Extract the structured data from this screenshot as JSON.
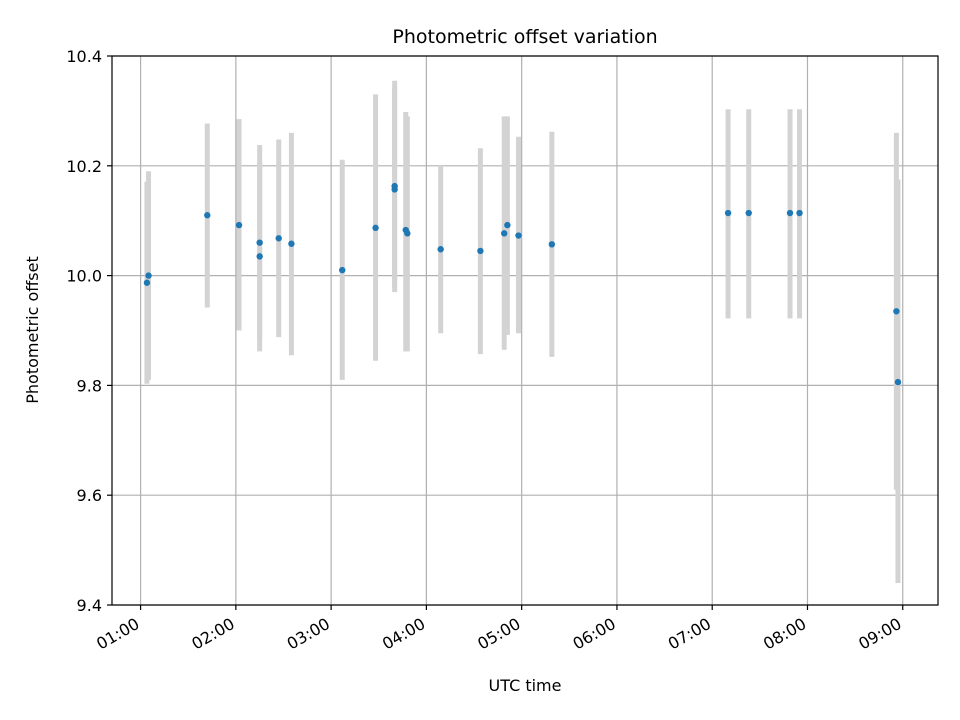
{
  "chart_data": {
    "type": "scatter",
    "title": "Photometric offset variation",
    "xlabel": "UTC time",
    "ylabel": "Photometric offset",
    "x_ticks": [
      "01:00",
      "02:00",
      "03:00",
      "04:00",
      "05:00",
      "06:00",
      "07:00",
      "08:00",
      "09:00"
    ],
    "x_tick_hours": [
      1,
      2,
      3,
      4,
      5,
      6,
      7,
      8,
      9
    ],
    "xlim_hours": [
      0.7,
      9.37
    ],
    "y_ticks": [
      "9.4",
      "9.6",
      "9.8",
      "10.0",
      "10.2",
      "10.4"
    ],
    "y_tick_values": [
      9.4,
      9.6,
      9.8,
      10.0,
      10.2,
      10.4
    ],
    "ylim": [
      9.4,
      10.4
    ],
    "grid": true,
    "point_color": "#1f77b4",
    "errorbar_color": "#d3d3d3",
    "points": [
      {
        "time": "01:04",
        "value": 9.987,
        "low": 9.803,
        "high": 10.171
      },
      {
        "time": "01:05",
        "value": 10.0,
        "low": 9.81,
        "high": 10.19
      },
      {
        "time": "01:42",
        "value": 10.11,
        "low": 9.942,
        "high": 10.277
      },
      {
        "time": "02:02",
        "value": 10.092,
        "low": 9.9,
        "high": 10.285
      },
      {
        "time": "02:15",
        "value": 10.06,
        "low": 9.885,
        "high": 10.238
      },
      {
        "time": "02:15",
        "value": 10.035,
        "low": 9.862,
        "high": 10.206
      },
      {
        "time": "02:27",
        "value": 10.068,
        "low": 9.888,
        "high": 10.248
      },
      {
        "time": "02:35",
        "value": 10.058,
        "low": 9.855,
        "high": 10.26
      },
      {
        "time": "03:07",
        "value": 10.01,
        "low": 9.81,
        "high": 10.211
      },
      {
        "time": "03:28",
        "value": 10.087,
        "low": 9.845,
        "high": 10.33
      },
      {
        "time": "03:40",
        "value": 10.157,
        "low": 9.97,
        "high": 10.355
      },
      {
        "time": "03:40",
        "value": 10.163,
        "low": 9.98,
        "high": 10.34
      },
      {
        "time": "03:47",
        "value": 10.083,
        "low": 9.862,
        "high": 10.298
      },
      {
        "time": "03:48",
        "value": 10.077,
        "low": 9.862,
        "high": 10.29
      },
      {
        "time": "04:09",
        "value": 10.048,
        "low": 9.895,
        "high": 10.2
      },
      {
        "time": "04:34",
        "value": 10.045,
        "low": 9.857,
        "high": 10.232
      },
      {
        "time": "04:49",
        "value": 10.077,
        "low": 9.865,
        "high": 10.29
      },
      {
        "time": "04:51",
        "value": 10.092,
        "low": 9.892,
        "high": 10.29
      },
      {
        "time": "04:58",
        "value": 10.073,
        "low": 9.895,
        "high": 10.253
      },
      {
        "time": "05:19",
        "value": 10.057,
        "low": 9.852,
        "high": 10.262
      },
      {
        "time": "07:10",
        "value": 10.114,
        "low": 9.922,
        "high": 10.303
      },
      {
        "time": "07:23",
        "value": 10.114,
        "low": 9.922,
        "high": 10.303
      },
      {
        "time": "07:49",
        "value": 10.114,
        "low": 9.922,
        "high": 10.303
      },
      {
        "time": "07:55",
        "value": 10.114,
        "low": 9.922,
        "high": 10.303
      },
      {
        "time": "08:56",
        "value": 9.935,
        "low": 9.61,
        "high": 10.26
      },
      {
        "time": "08:57",
        "value": 9.806,
        "low": 9.44,
        "high": 10.175
      }
    ]
  }
}
